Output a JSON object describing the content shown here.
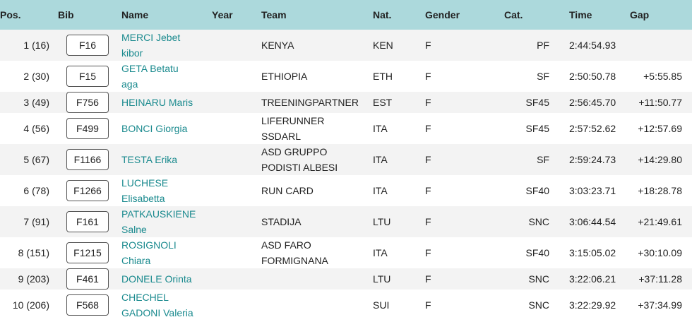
{
  "headers": {
    "pos": "Pos.",
    "bib": "Bib",
    "name": "Name",
    "year": "Year",
    "team": "Team",
    "nat": "Nat.",
    "gender": "Gender",
    "cat": "Cat.",
    "time": "Time",
    "gap": "Gap"
  },
  "colors": {
    "header_bg": "#acd9dc",
    "link": "#1a8a8e",
    "row_alt": "#f3f3f3"
  },
  "rows": [
    {
      "pos": "1 (16)",
      "bib": "F16",
      "name": "MERCI Jebet kibor",
      "year": "",
      "team": "KENYA",
      "nat": "KEN",
      "gender": "F",
      "cat": "PF",
      "time": "2:44:54.93",
      "gap": ""
    },
    {
      "pos": "2 (30)",
      "bib": "F15",
      "name": "GETA Betatu aga",
      "year": "",
      "team": "ETHIOPIA",
      "nat": "ETH",
      "gender": "F",
      "cat": "SF",
      "time": "2:50:50.78",
      "gap": "+5:55.85"
    },
    {
      "pos": "3 (49)",
      "bib": "F756",
      "name": "HEINARU Maris",
      "year": "",
      "team": "TREENINGPARTNER",
      "nat": "EST",
      "gender": "F",
      "cat": "SF45",
      "time": "2:56:45.70",
      "gap": "+11:50.77"
    },
    {
      "pos": "4 (56)",
      "bib": "F499",
      "name": "BONCI Giorgia",
      "year": "",
      "team": "LIFERUNNER SSDARL",
      "nat": "ITA",
      "gender": "F",
      "cat": "SF45",
      "time": "2:57:52.62",
      "gap": "+12:57.69"
    },
    {
      "pos": "5 (67)",
      "bib": "F1166",
      "name": "TESTA Erika",
      "year": "",
      "team": "ASD GRUPPO PODISTI ALBESI",
      "nat": "ITA",
      "gender": "F",
      "cat": "SF",
      "time": "2:59:24.73",
      "gap": "+14:29.80"
    },
    {
      "pos": "6 (78)",
      "bib": "F1266",
      "name": "LUCHESE Elisabetta",
      "year": "",
      "team": "RUN CARD",
      "nat": "ITA",
      "gender": "F",
      "cat": "SF40",
      "time": "3:03:23.71",
      "gap": "+18:28.78"
    },
    {
      "pos": "7 (91)",
      "bib": "F161",
      "name": "PATKAUSKIENE Salne",
      "year": "",
      "team": "STADIJA",
      "nat": "LTU",
      "gender": "F",
      "cat": "SNC",
      "time": "3:06:44.54",
      "gap": "+21:49.61"
    },
    {
      "pos": "8 (151)",
      "bib": "F1215",
      "name": "ROSIGNOLI Chiara",
      "year": "",
      "team": "ASD FARO FORMIGNANA",
      "nat": "ITA",
      "gender": "F",
      "cat": "SF40",
      "time": "3:15:05.02",
      "gap": "+30:10.09"
    },
    {
      "pos": "9 (203)",
      "bib": "F461",
      "name": "DONELE Orinta",
      "year": "",
      "team": "",
      "nat": "LTU",
      "gender": "F",
      "cat": "SNC",
      "time": "3:22:06.21",
      "gap": "+37:11.28"
    },
    {
      "pos": "10 (206)",
      "bib": "F568",
      "name": "CHECHEL GADONI Valeria",
      "year": "",
      "team": "",
      "nat": "SUI",
      "gender": "F",
      "cat": "SNC",
      "time": "3:22:29.92",
      "gap": "+37:34.99"
    }
  ]
}
